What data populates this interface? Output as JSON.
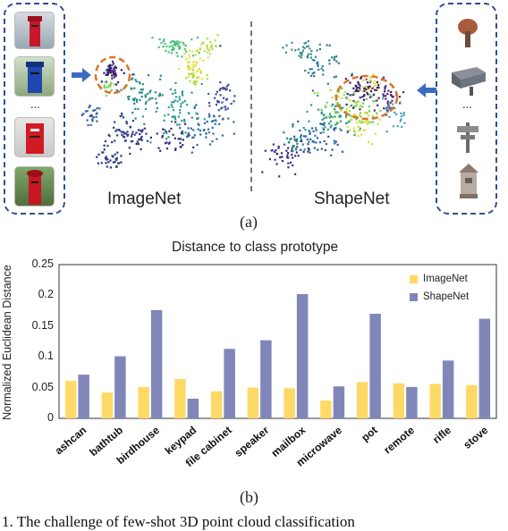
{
  "panel_a": {
    "imagenet_label": "ImageNet",
    "shapenet_label": "ShapeNet",
    "caption": "(a)",
    "ellipsis_left": "...",
    "ellipsis_right": "..."
  },
  "panel_b": {
    "caption": "(b)"
  },
  "colors": {
    "imagenet": "#FFD966",
    "shapenet": "#8087B8",
    "frame": "#2F4F8F",
    "highlight": "#D9742B"
  },
  "chart_data": {
    "type": "bar",
    "title": "Distance to class prototype",
    "ylabel": "Normalized Euclidean Distance",
    "xlabel": "",
    "ylim": [
      0,
      0.25
    ],
    "yticks": [
      "0",
      "0.05",
      "0.1",
      "0.15",
      "0.2",
      "0.25"
    ],
    "categories": [
      "ashcan",
      "bathtub",
      "birdhouse",
      "keypad",
      "file cabinet",
      "speaker",
      "mailbox",
      "microwave",
      "pot",
      "remote",
      "rifle",
      "stove"
    ],
    "series": [
      {
        "name": "ImageNet",
        "values": [
          0.061,
          0.042,
          0.051,
          0.064,
          0.044,
          0.05,
          0.049,
          0.029,
          0.059,
          0.057,
          0.056,
          0.054
        ]
      },
      {
        "name": "ShapeNet",
        "values": [
          0.071,
          0.101,
          0.176,
          0.032,
          0.113,
          0.127,
          0.202,
          0.052,
          0.17,
          0.051,
          0.094,
          0.162
        ]
      }
    ],
    "legend_position": "top-right",
    "grid": false
  },
  "caption_fragment": "1. The challenge of few-shot 3D point cloud classification"
}
